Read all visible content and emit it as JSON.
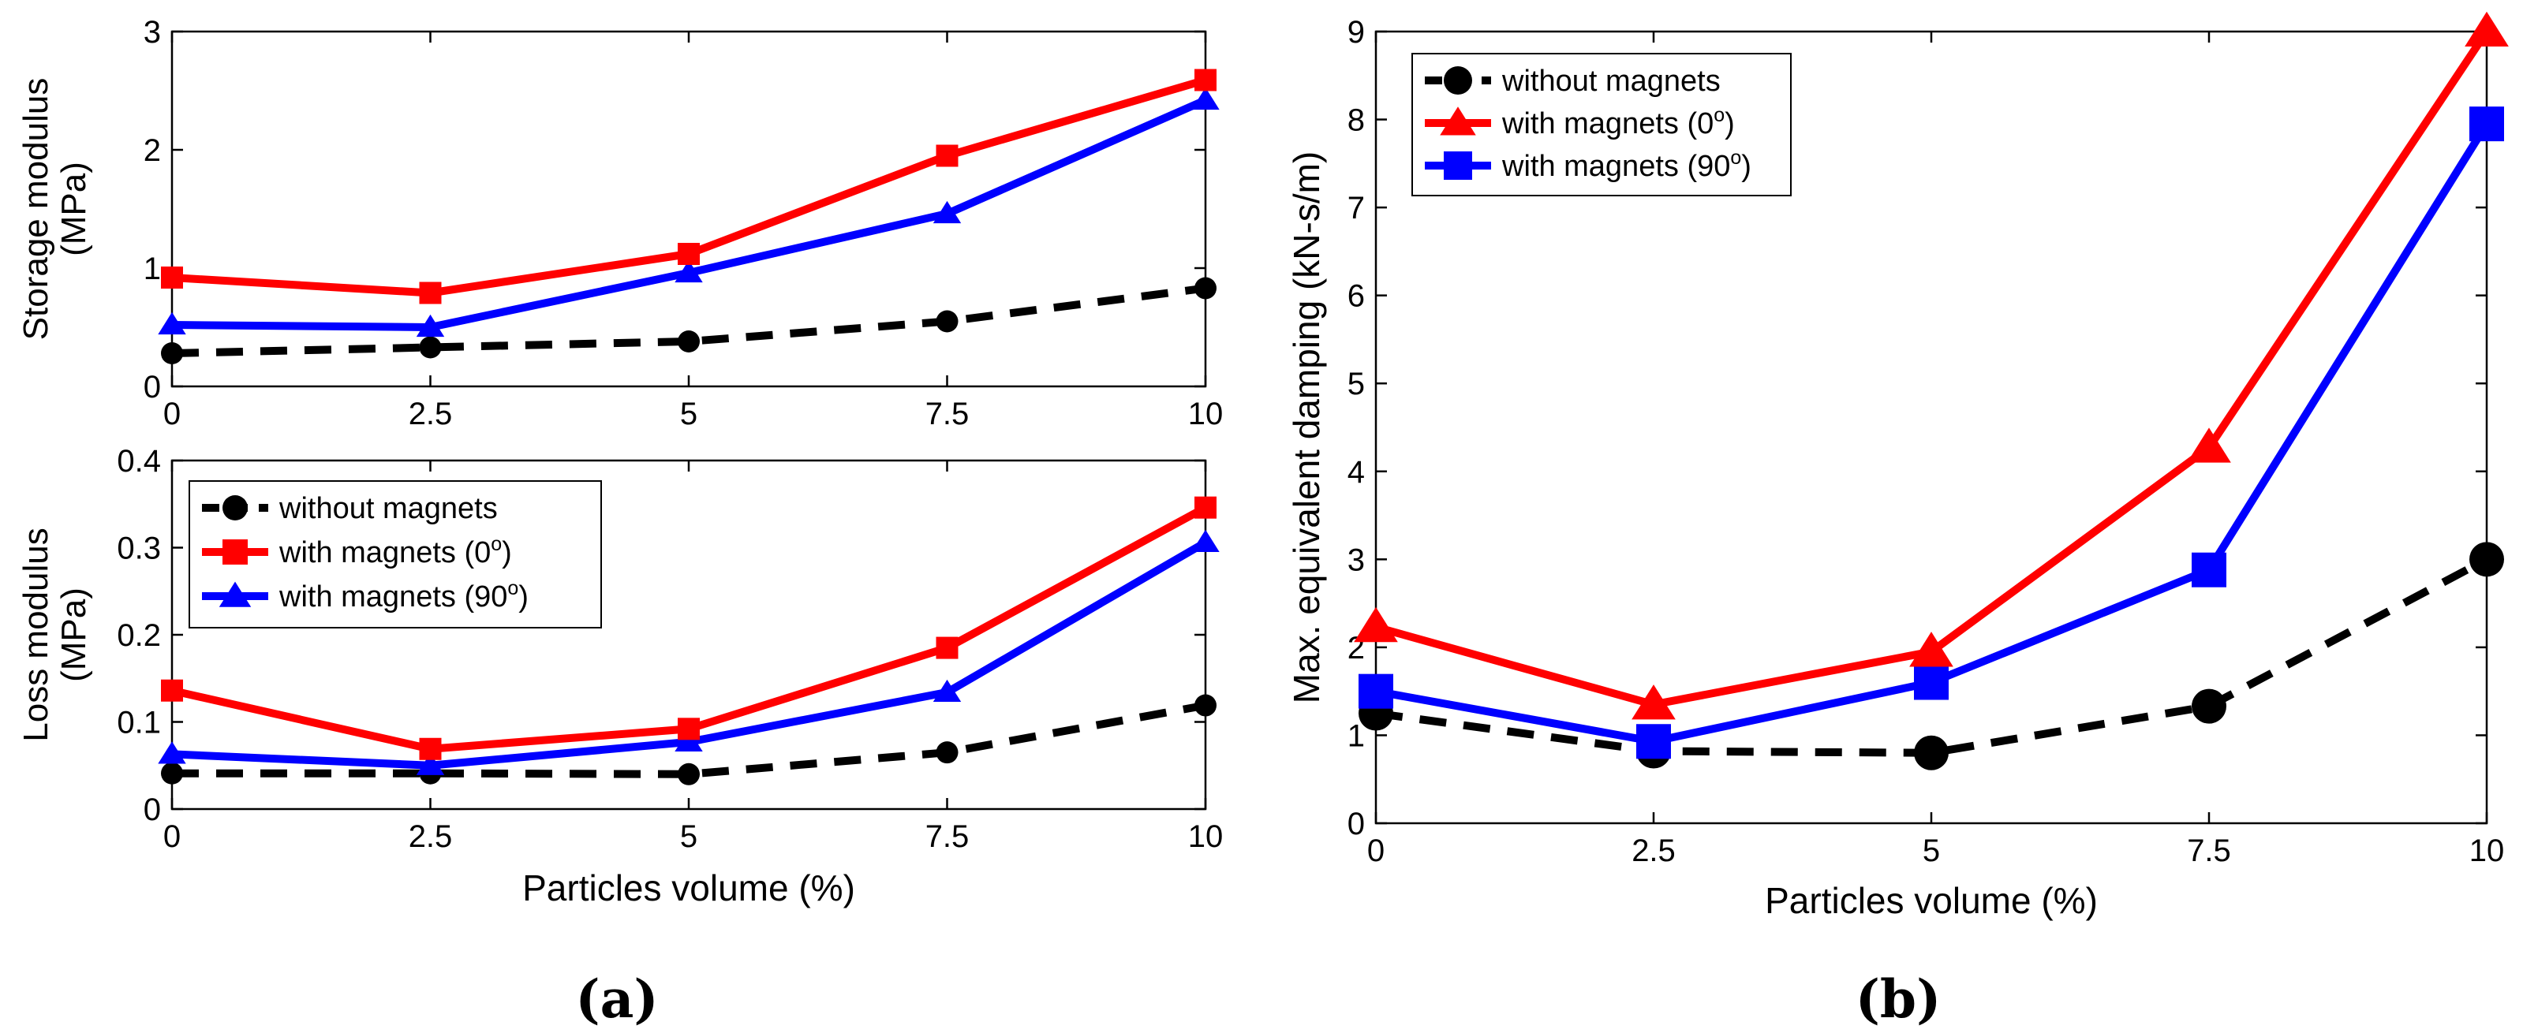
{
  "panel_labels": {
    "a": "(a)",
    "b": "(b)"
  },
  "legend": {
    "without": "without magnets",
    "mag0_prefix": "with magnets (0",
    "mag90_prefix": "with magnets (90",
    "deg_mark": "o",
    "close": ")"
  },
  "colors": {
    "without": "#000000",
    "mag0": "#ff0000",
    "mag90": "#0000ff"
  },
  "chart_data": [
    {
      "id": "storage",
      "type": "line",
      "xlabel": "",
      "ylabel_line1": "Storage modulus",
      "ylabel_line2": "(MPa)",
      "x": [
        0,
        2.5,
        5,
        7.5,
        10
      ],
      "xticks": [
        "0",
        "2.5",
        "5",
        "7.5",
        "10"
      ],
      "yticks": [
        "0",
        "1",
        "2",
        "3"
      ],
      "xlim": [
        0,
        10
      ],
      "ylim": [
        0,
        3
      ],
      "series": [
        {
          "key": "without",
          "name": "without magnets",
          "values": [
            0.28,
            0.33,
            0.38,
            0.55,
            0.83
          ]
        },
        {
          "key": "mag0",
          "name": "with magnets (0o)",
          "values": [
            0.92,
            0.79,
            1.12,
            1.95,
            2.59
          ]
        },
        {
          "key": "mag90",
          "name": "with magnets (90o)",
          "values": [
            0.52,
            0.5,
            0.96,
            1.46,
            2.42
          ]
        }
      ]
    },
    {
      "id": "loss",
      "type": "line",
      "xlabel": "Particles volume (%)",
      "ylabel_line1": "Loss modulus",
      "ylabel_line2": "(MPa)",
      "x": [
        0,
        2.5,
        5,
        7.5,
        10
      ],
      "xticks": [
        "0",
        "2.5",
        "5",
        "7.5",
        "10"
      ],
      "yticks": [
        "0",
        "0.1",
        "0.2",
        "0.3",
        "0.4"
      ],
      "xlim": [
        0,
        10
      ],
      "ylim": [
        0,
        0.4
      ],
      "series": [
        {
          "key": "without",
          "name": "without magnets",
          "values": [
            0.041,
            0.041,
            0.04,
            0.065,
            0.119
          ]
        },
        {
          "key": "mag0",
          "name": "with magnets (0o)",
          "values": [
            0.136,
            0.069,
            0.092,
            0.185,
            0.346
          ]
        },
        {
          "key": "mag90",
          "name": "with magnets (90o)",
          "values": [
            0.063,
            0.05,
            0.077,
            0.134,
            0.306
          ]
        }
      ]
    },
    {
      "id": "damping",
      "type": "line",
      "xlabel": "Particles volume (%)",
      "ylabel_line1": "Max. equivalent damping (kN-s/m)",
      "ylabel_line2": "",
      "x": [
        0,
        2.5,
        5,
        7.5,
        10
      ],
      "xticks": [
        "0",
        "2.5",
        "5",
        "7.5",
        "10"
      ],
      "yticks": [
        "0",
        "1",
        "2",
        "3",
        "4",
        "5",
        "6",
        "7",
        "8",
        "9"
      ],
      "xlim": [
        0,
        10
      ],
      "ylim": [
        0,
        9
      ],
      "series": [
        {
          "key": "without",
          "name": "without magnets",
          "values": [
            1.25,
            0.82,
            0.8,
            1.33,
            3.0
          ]
        },
        {
          "key": "mag0",
          "name": "with magnets (0o)",
          "values": [
            2.23,
            1.35,
            1.95,
            4.27,
            9.0
          ]
        },
        {
          "key": "mag90",
          "name": "with magnets (90o)",
          "values": [
            1.5,
            0.93,
            1.6,
            2.88,
            7.95
          ]
        }
      ]
    }
  ]
}
